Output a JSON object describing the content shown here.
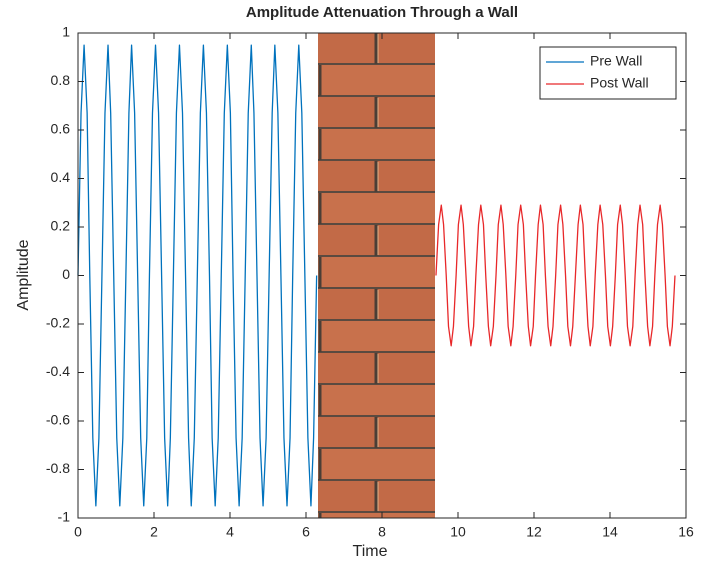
{
  "chart_data": {
    "type": "line",
    "title": "Amplitude Attenuation Through a Wall",
    "xlabel": "Time",
    "ylabel": "Amplitude",
    "xlim": [
      0,
      16
    ],
    "xticks": [
      0,
      2,
      4,
      6,
      8,
      10,
      12,
      14,
      16
    ],
    "ylim": [
      -1,
      1
    ],
    "yticks": [
      -1,
      -0.8,
      -0.6,
      -0.4,
      -0.2,
      0,
      0.2,
      0.4,
      0.6,
      0.8,
      1
    ],
    "legend": "top-right",
    "series": [
      {
        "name": "Pre Wall",
        "color": "#0072bd",
        "x": [
          0.0,
          0.08,
          0.16,
          0.24,
          0.31,
          0.39,
          0.47,
          0.55,
          0.63,
          0.71,
          0.79,
          0.86,
          0.94,
          1.02,
          1.1,
          1.18,
          1.26,
          1.34,
          1.41,
          1.49,
          1.57,
          1.65,
          1.73,
          1.81,
          1.88,
          1.96,
          2.04,
          2.12,
          2.2,
          2.28,
          2.36,
          2.43,
          2.51,
          2.59,
          2.67,
          2.75,
          2.83,
          2.91,
          2.98,
          3.06,
          3.14,
          3.22,
          3.3,
          3.38,
          3.46,
          3.53,
          3.61,
          3.69,
          3.77,
          3.85,
          3.93,
          4.01,
          4.08,
          4.16,
          4.24,
          4.32,
          4.4,
          4.48,
          4.56,
          4.63,
          4.71,
          4.79,
          4.87,
          4.95,
          5.03,
          5.11,
          5.18,
          5.26,
          5.34,
          5.42,
          5.5,
          5.58,
          5.65,
          5.73,
          5.81,
          5.89,
          5.97,
          6.05,
          6.13,
          6.2,
          6.28
        ],
        "values": [
          0,
          0.67,
          0.95,
          0.67,
          0,
          -0.67,
          -0.95,
          -0.67,
          0,
          0.67,
          0.95,
          0.67,
          0,
          -0.67,
          -0.95,
          -0.67,
          0,
          0.67,
          0.95,
          0.67,
          0,
          -0.67,
          -0.95,
          -0.67,
          0,
          0.67,
          0.95,
          0.67,
          0,
          -0.67,
          -0.95,
          -0.67,
          0,
          0.67,
          0.95,
          0.67,
          0,
          -0.67,
          -0.95,
          -0.67,
          0,
          0.67,
          0.95,
          0.67,
          0,
          -0.67,
          -0.95,
          -0.67,
          0,
          0.67,
          0.95,
          0.67,
          0,
          -0.67,
          -0.95,
          -0.67,
          0,
          0.67,
          0.95,
          0.67,
          0,
          -0.67,
          -0.95,
          -0.67,
          0,
          0.67,
          0.95,
          0.67,
          0,
          -0.67,
          -0.95,
          -0.67,
          0,
          0.67,
          0.95,
          0.67,
          0,
          -0.67,
          -0.95,
          -0.67,
          0
        ]
      },
      {
        "name": "Post Wall",
        "color": "#e8282a",
        "x": [
          9.42,
          9.49,
          9.56,
          9.62,
          9.69,
          9.75,
          9.82,
          9.88,
          9.95,
          10.01,
          10.08,
          10.14,
          10.21,
          10.28,
          10.34,
          10.41,
          10.47,
          10.54,
          10.6,
          10.67,
          10.73,
          10.8,
          10.86,
          10.93,
          11.0,
          11.06,
          11.13,
          11.19,
          11.26,
          11.32,
          11.39,
          11.45,
          11.52,
          11.58,
          11.65,
          11.72,
          11.78,
          11.85,
          11.91,
          11.98,
          12.04,
          12.11,
          12.17,
          12.24,
          12.3,
          12.37,
          12.44,
          12.5,
          12.57,
          12.63,
          12.7,
          12.76,
          12.83,
          12.89,
          12.96,
          13.02,
          13.09,
          13.16,
          13.22,
          13.29,
          13.35,
          13.42,
          13.48,
          13.55,
          13.61,
          13.68,
          13.74,
          13.81,
          13.88,
          13.94,
          14.01,
          14.07,
          14.14,
          14.2,
          14.27,
          14.33,
          14.4,
          14.46,
          14.53,
          14.6,
          14.66,
          14.73,
          14.79,
          14.86,
          14.92,
          14.99,
          15.05,
          15.12,
          15.18,
          15.25,
          15.32,
          15.38,
          15.45,
          15.51,
          15.58,
          15.64,
          15.71
        ],
        "values": [
          0,
          0.21,
          0.29,
          0.21,
          0,
          -0.21,
          -0.29,
          -0.21,
          0,
          0.21,
          0.29,
          0.21,
          0,
          -0.21,
          -0.29,
          -0.21,
          0,
          0.21,
          0.29,
          0.21,
          0,
          -0.21,
          -0.29,
          -0.21,
          0,
          0.21,
          0.29,
          0.21,
          0,
          -0.21,
          -0.29,
          -0.21,
          0,
          0.21,
          0.29,
          0.21,
          0,
          -0.21,
          -0.29,
          -0.21,
          0,
          0.21,
          0.29,
          0.21,
          0,
          -0.21,
          -0.29,
          -0.21,
          0,
          0.21,
          0.29,
          0.21,
          0,
          -0.21,
          -0.29,
          -0.21,
          0,
          0.21,
          0.29,
          0.21,
          0,
          -0.21,
          -0.29,
          -0.21,
          0,
          0.21,
          0.29,
          0.21,
          0,
          -0.21,
          -0.29,
          -0.21,
          0,
          0.21,
          0.29,
          0.21,
          0,
          -0.21,
          -0.29,
          -0.21,
          0,
          0.21,
          0.29,
          0.21,
          0,
          -0.21,
          -0.29,
          -0.21,
          0,
          0.21,
          0.29,
          0.21,
          0,
          -0.21,
          -0.29,
          -0.21,
          0
        ]
      }
    ]
  }
}
